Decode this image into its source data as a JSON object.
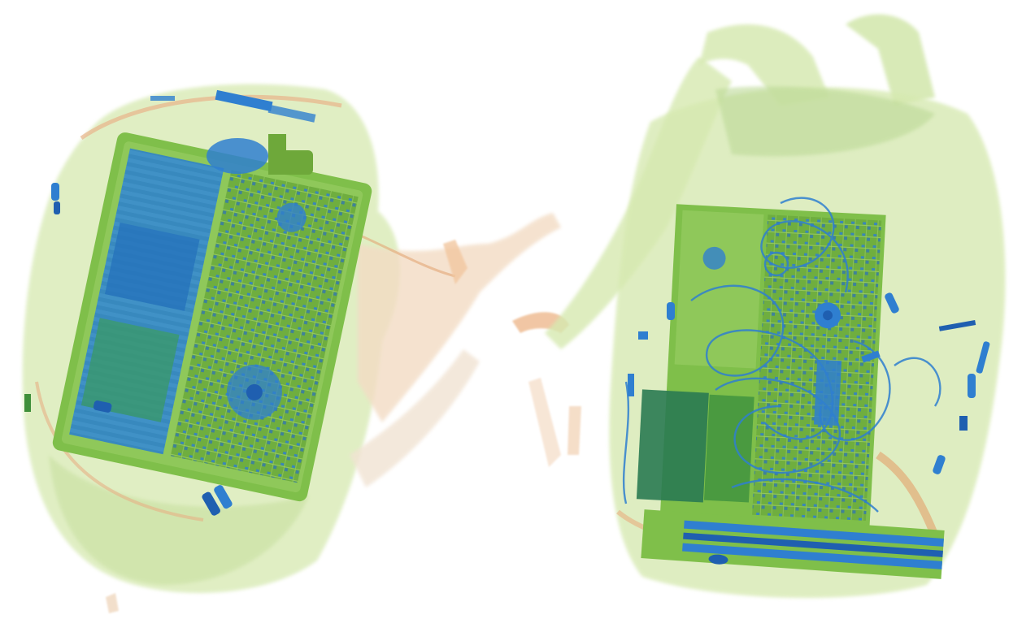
{
  "image": {
    "kind": "x-ray-baggage-scan",
    "background": "#ffffff",
    "palette": {
      "organic_light": "#cfe3a6",
      "organic_mid": "#a9cf6a",
      "organic_dark": "#6ea83a",
      "strap_orange": "#e8b48a",
      "metal_blue": "#2f7fd0",
      "metal_deep": "#1f5fb0",
      "board_green": "#3f8f3a"
    },
    "objects": [
      {
        "name": "left-backpack",
        "contents": [
          "laptop",
          "zipper-pulls",
          "cables"
        ]
      },
      {
        "name": "right-backpack",
        "contents": [
          "laptop",
          "cables",
          "zipper-pulls",
          "keyboard"
        ]
      }
    ]
  }
}
